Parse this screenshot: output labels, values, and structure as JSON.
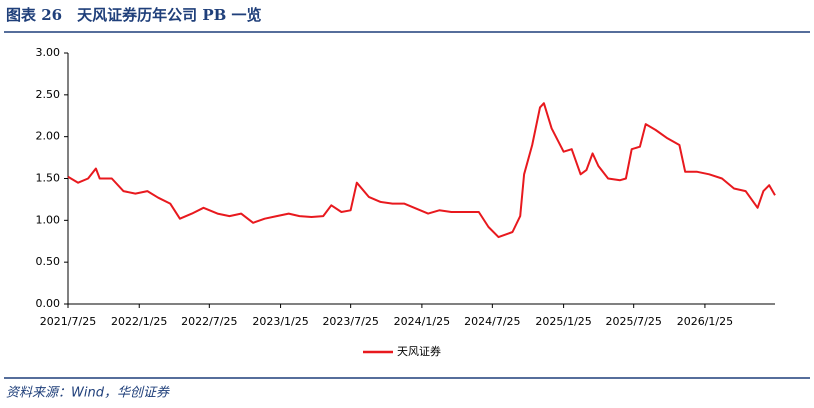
{
  "header": {
    "title": "图表 26　天风证券历年公司 PB 一览"
  },
  "chart_data": {
    "type": "line",
    "x": [
      "2021/7/25",
      "2021/8/20",
      "2021/9/15",
      "2021/10/5",
      "2021/10/15",
      "2021/11/15",
      "2021/12/15",
      "2022/1/15",
      "2022/2/15",
      "2022/3/15",
      "2022/4/15",
      "2022/5/10",
      "2022/6/10",
      "2022/7/10",
      "2022/8/15",
      "2022/9/15",
      "2022/10/15",
      "2022/11/15",
      "2022/12/15",
      "2023/1/15",
      "2023/2/15",
      "2023/3/15",
      "2023/4/15",
      "2023/5/15",
      "2023/6/5",
      "2023/7/1",
      "2023/7/25",
      "2023/8/10",
      "2023/9/10",
      "2023/10/10",
      "2023/11/10",
      "2023/12/10",
      "2024/1/10",
      "2024/2/10",
      "2024/3/10",
      "2024/4/10",
      "2024/5/10",
      "2024/6/20",
      "2024/7/15",
      "2024/8/10",
      "2024/9/15",
      "2024/10/5",
      "2024/10/15",
      "2024/11/5",
      "2024/11/25",
      "2024/12/5",
      "2024/12/25",
      "2025/1/25",
      "2025/2/15",
      "2025/3/10",
      "2025/3/25",
      "2025/4/10",
      "2025/4/25",
      "2025/5/20",
      "2025/6/20",
      "2025/7/5",
      "2025/7/20",
      "2025/8/10",
      "2025/8/25",
      "2025/9/20",
      "2025/10/20",
      "2025/11/20",
      "2025/12/5",
      "2026/1/5",
      "2026/2/5",
      "2026/3/10",
      "2026/4/10",
      "2026/5/10",
      "2026/6/10",
      "2026/6/25",
      "2026/7/10",
      "2026/7/25"
    ],
    "series": [
      {
        "name": "天风证券",
        "color": "#e8191e",
        "values": [
          1.52,
          1.45,
          1.5,
          1.62,
          1.5,
          1.5,
          1.35,
          1.32,
          1.35,
          1.27,
          1.2,
          1.02,
          1.08,
          1.15,
          1.08,
          1.05,
          1.08,
          0.97,
          1.02,
          1.05,
          1.08,
          1.05,
          1.04,
          1.05,
          1.18,
          1.1,
          1.12,
          1.45,
          1.28,
          1.22,
          1.2,
          1.2,
          1.14,
          1.08,
          1.12,
          1.1,
          1.1,
          1.1,
          0.92,
          0.8,
          0.86,
          1.05,
          1.55,
          1.9,
          2.35,
          2.4,
          2.1,
          1.82,
          1.85,
          1.55,
          1.6,
          1.8,
          1.65,
          1.5,
          1.48,
          1.5,
          1.85,
          1.88,
          2.15,
          2.08,
          1.98,
          1.9,
          1.58,
          1.58,
          1.55,
          1.5,
          1.38,
          1.35,
          1.15,
          1.35,
          1.42,
          1.3
        ]
      }
    ],
    "xlim": [
      "2021/7/25",
      "2026/7/25"
    ],
    "xticks": [
      "2021/7/25",
      "2022/1/25",
      "2022/7/25",
      "2023/1/25",
      "2023/7/25",
      "2024/1/25",
      "2024/7/25",
      "2025/1/25",
      "2025/7/25",
      "2026/1/25"
    ],
    "ylim": [
      0,
      3
    ],
    "yticks": [
      {
        "value": 0,
        "label": "0.00"
      },
      {
        "value": 0.5,
        "label": "0.50"
      },
      {
        "value": 1,
        "label": "1.00"
      },
      {
        "value": 1.5,
        "label": "1.50"
      },
      {
        "value": 2,
        "label": "2.00"
      },
      {
        "value": 2.5,
        "label": "2.50"
      },
      {
        "value": 3,
        "label": "3.00"
      }
    ]
  },
  "footer": {
    "source": "资料来源：Wind，华创证券"
  }
}
